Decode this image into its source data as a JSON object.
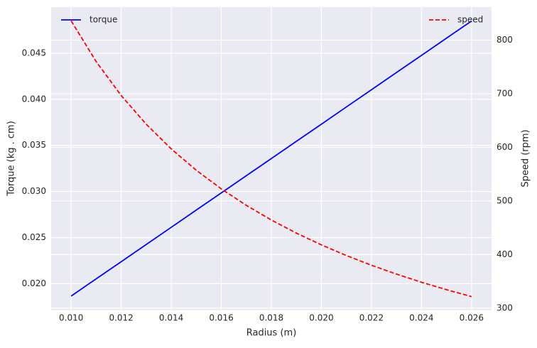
{
  "chart_data": {
    "type": "line",
    "xlabel": "Radius (m)",
    "ylabel": "Torque (kg . cm)",
    "y2label": "Speed (rpm)",
    "x": [
      0.01,
      0.011,
      0.012,
      0.013,
      0.014,
      0.015,
      0.016,
      0.017,
      0.018,
      0.019,
      0.02,
      0.021,
      0.022,
      0.023,
      0.024,
      0.025,
      0.026
    ],
    "series": [
      {
        "name": "torque",
        "color": "#0000ff",
        "linestyle": "solid",
        "axis": "y",
        "legend": "upper left",
        "values": [
          0.01865,
          0.02052,
          0.02238,
          0.02425,
          0.02611,
          0.02798,
          0.02984,
          0.03171,
          0.03357,
          0.03544,
          0.0373,
          0.03917,
          0.04103,
          0.0429,
          0.04476,
          0.04663,
          0.04849
        ]
      },
      {
        "name": "speed",
        "color": "#ff0000",
        "linestyle": "dashed",
        "axis": "y2",
        "legend": "upper right",
        "values": [
          836,
          760,
          696.7,
          643.1,
          597.1,
          557.3,
          522.5,
          491.8,
          464.4,
          440,
          418,
          398.1,
          380,
          363.5,
          348.3,
          334.4,
          321.5
        ]
      }
    ],
    "xlim": [
      0.0092,
      0.0268
    ],
    "xticks": [
      {
        "value": 0.01,
        "label": "0.010"
      },
      0.012,
      0.014,
      0.016,
      0.018,
      {
        "value": 0.02,
        "label": "0.020"
      },
      0.022,
      0.024,
      0.026
    ],
    "ylim": [
      0.0171,
      0.05
    ],
    "yticks": [
      {
        "value": 0.02,
        "label": "0.020"
      },
      0.025,
      {
        "value": 0.03,
        "label": "0.030"
      },
      0.035,
      {
        "value": 0.04,
        "label": "0.040"
      },
      0.045
    ],
    "y2lim": [
      295.8,
      861.7
    ],
    "y2ticks": [
      300,
      400,
      500,
      600,
      700,
      800
    ],
    "grid": true,
    "background": "#eaeaf2"
  }
}
